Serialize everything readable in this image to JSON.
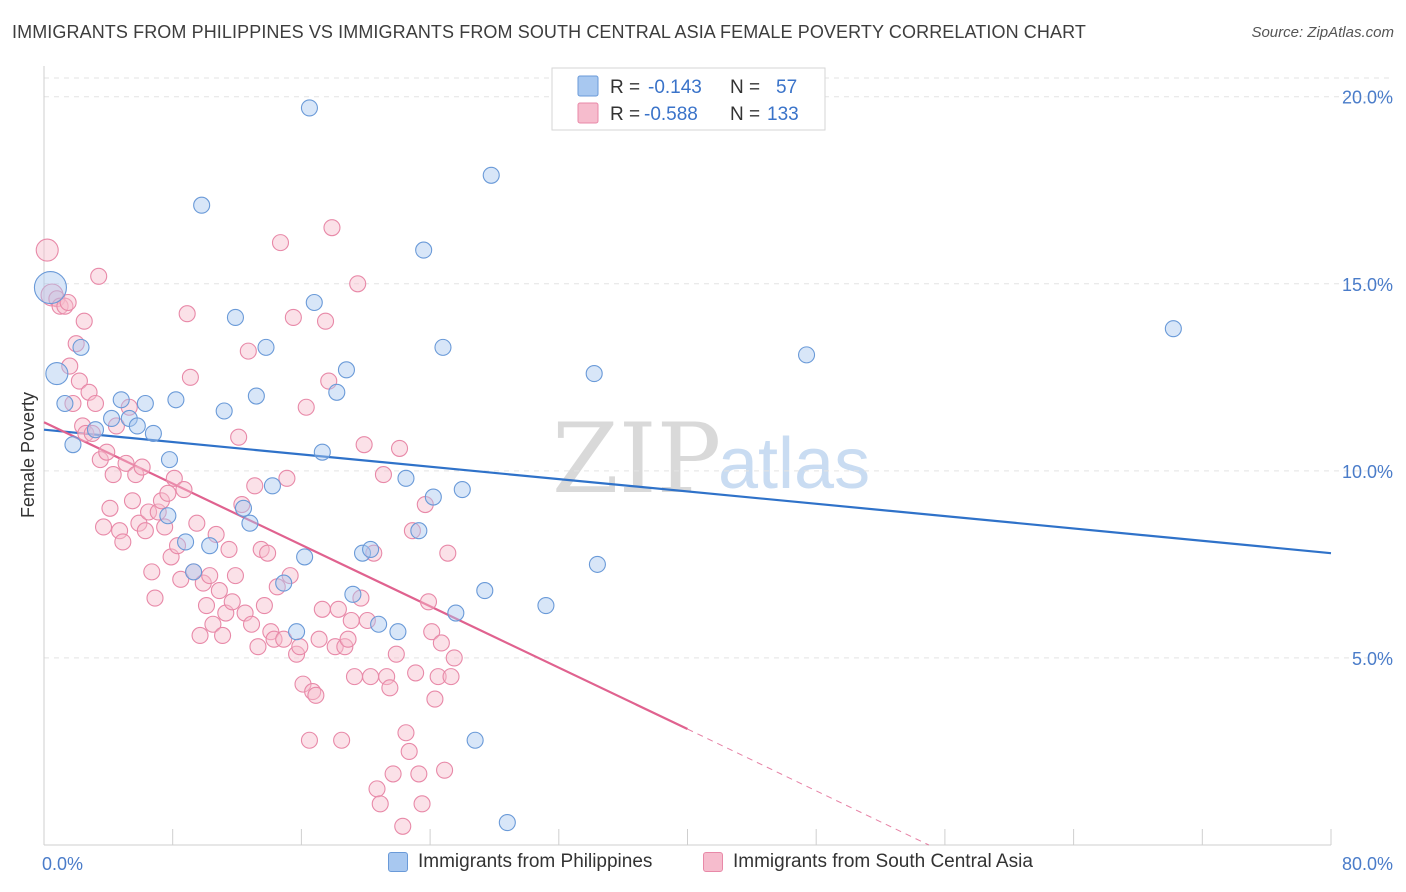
{
  "header": {
    "title": "IMMIGRANTS FROM PHILIPPINES VS IMMIGRANTS FROM SOUTH CENTRAL ASIA FEMALE POVERTY CORRELATION CHART",
    "source": "Source: ZipAtlas.com"
  },
  "watermark": {
    "zip": "ZIP",
    "atlas": "atlas"
  },
  "colors": {
    "philippines_fill": "#a8c8f0",
    "philippines_stroke": "#6a9ad8",
    "philippines_line": "#2f72c9",
    "sca_fill": "#f6bccd",
    "sca_stroke": "#e889a8",
    "sca_line": "#e0628f",
    "tick_text": "#4a7cc9",
    "grid": "#e3e3e3"
  },
  "legend_box": {
    "rows": [
      {
        "r_label": "R =",
        "r_value": "-0.143",
        "n_label": "N =",
        "n_value": "57"
      },
      {
        "r_label": "R =",
        "r_value": "-0.588",
        "n_label": "N =",
        "n_value": "133"
      }
    ]
  },
  "bottom_legend": {
    "items": [
      "Immigrants from Philippines",
      "Immigrants from South Central Asia"
    ]
  },
  "chart_data": {
    "type": "scatter",
    "title": "IMMIGRANTS FROM PHILIPPINES VS IMMIGRANTS FROM SOUTH CENTRAL ASIA FEMALE POVERTY CORRELATION CHART",
    "xlabel": "",
    "ylabel": "Female Poverty",
    "xlim": [
      0,
      80
    ],
    "ylim": [
      0,
      20.5
    ],
    "x_tick_labels": [
      "0.0%",
      "80.0%"
    ],
    "y_ticks": [
      5,
      10,
      15,
      20
    ],
    "y_tick_labels": [
      "5.0%",
      "10.0%",
      "15.0%",
      "20.0%"
    ],
    "grid": "horizontal dashed",
    "legend_position": "top-center",
    "series": [
      {
        "name": "Immigrants from Philippines",
        "R": -0.143,
        "N": 57,
        "trend": {
          "x": [
            0,
            80
          ],
          "y": [
            11.1,
            7.8
          ]
        },
        "points": [
          [
            0.4,
            14.9,
            16
          ],
          [
            0.8,
            12.6,
            11
          ],
          [
            1.3,
            11.8,
            8
          ],
          [
            1.8,
            10.7,
            8
          ],
          [
            2.3,
            13.3,
            8
          ],
          [
            3.2,
            11.1,
            8
          ],
          [
            4.2,
            11.4,
            8
          ],
          [
            4.8,
            11.9,
            8
          ],
          [
            5.3,
            11.4,
            8
          ],
          [
            5.8,
            11.2,
            8
          ],
          [
            6.3,
            11.8,
            8
          ],
          [
            6.8,
            11.0,
            8
          ],
          [
            7.7,
            8.8,
            8
          ],
          [
            7.8,
            10.3,
            8
          ],
          [
            8.2,
            11.9,
            8
          ],
          [
            8.8,
            8.1,
            8
          ],
          [
            9.3,
            7.3,
            8
          ],
          [
            9.8,
            17.1,
            8
          ],
          [
            10.3,
            8.0,
            8
          ],
          [
            11.2,
            11.6,
            8
          ],
          [
            11.9,
            14.1,
            8
          ],
          [
            12.4,
            9.0,
            8
          ],
          [
            12.8,
            8.6,
            8
          ],
          [
            13.2,
            12.0,
            8
          ],
          [
            13.8,
            13.3,
            8
          ],
          [
            14.2,
            9.6,
            8
          ],
          [
            14.9,
            7.0,
            8
          ],
          [
            15.7,
            5.7,
            8
          ],
          [
            16.2,
            7.7,
            8
          ],
          [
            16.5,
            19.7,
            8
          ],
          [
            16.8,
            14.5,
            8
          ],
          [
            17.3,
            10.5,
            8
          ],
          [
            18.2,
            12.1,
            8
          ],
          [
            18.8,
            12.7,
            8
          ],
          [
            19.2,
            6.7,
            8
          ],
          [
            19.8,
            7.8,
            8
          ],
          [
            20.3,
            7.9,
            8
          ],
          [
            20.8,
            5.9,
            8
          ],
          [
            22.0,
            5.7,
            8
          ],
          [
            22.5,
            9.8,
            8
          ],
          [
            23.3,
            8.4,
            8
          ],
          [
            23.6,
            15.9,
            8
          ],
          [
            24.2,
            9.3,
            8
          ],
          [
            24.8,
            13.3,
            8
          ],
          [
            25.6,
            6.2,
            8
          ],
          [
            26.0,
            9.5,
            8
          ],
          [
            26.8,
            2.8,
            8
          ],
          [
            27.4,
            6.8,
            8
          ],
          [
            27.8,
            17.9,
            8
          ],
          [
            28.8,
            0.6,
            8
          ],
          [
            31.2,
            6.4,
            8
          ],
          [
            34.2,
            12.6,
            8
          ],
          [
            34.4,
            7.5,
            8
          ],
          [
            47.4,
            13.1,
            8
          ],
          [
            70.2,
            13.8,
            8
          ]
        ]
      },
      {
        "name": "Immigrants from South Central Asia",
        "R": -0.588,
        "N": 133,
        "trend": {
          "x": [
            0,
            40
          ],
          "y": [
            11.3,
            3.1
          ]
        },
        "trend_extension": {
          "x": [
            40,
            55
          ],
          "y": [
            3.1,
            0.0
          ]
        },
        "points": [
          [
            0.2,
            15.9,
            11
          ],
          [
            0.5,
            14.7,
            11
          ],
          [
            0.8,
            14.6,
            8
          ],
          [
            1.0,
            14.4,
            8
          ],
          [
            1.3,
            14.4,
            8
          ],
          [
            1.5,
            14.5,
            8
          ],
          [
            1.6,
            12.8,
            8
          ],
          [
            1.8,
            11.8,
            8
          ],
          [
            2.0,
            13.4,
            8
          ],
          [
            2.2,
            12.4,
            8
          ],
          [
            2.4,
            11.2,
            8
          ],
          [
            2.5,
            14.0,
            8
          ],
          [
            2.6,
            11.0,
            8
          ],
          [
            2.8,
            12.1,
            8
          ],
          [
            3.0,
            11.0,
            8
          ],
          [
            3.2,
            11.8,
            8
          ],
          [
            3.4,
            15.2,
            8
          ],
          [
            3.5,
            10.3,
            8
          ],
          [
            3.7,
            8.5,
            8
          ],
          [
            3.9,
            10.5,
            8
          ],
          [
            4.1,
            9.0,
            8
          ],
          [
            4.3,
            9.9,
            8
          ],
          [
            4.5,
            11.2,
            8
          ],
          [
            4.7,
            8.4,
            8
          ],
          [
            4.9,
            8.1,
            8
          ],
          [
            5.1,
            10.2,
            8
          ],
          [
            5.3,
            11.7,
            8
          ],
          [
            5.5,
            9.2,
            8
          ],
          [
            5.7,
            9.9,
            8
          ],
          [
            5.9,
            8.6,
            8
          ],
          [
            6.1,
            10.1,
            8
          ],
          [
            6.3,
            8.4,
            8
          ],
          [
            6.5,
            8.9,
            8
          ],
          [
            6.7,
            7.3,
            8
          ],
          [
            6.9,
            6.6,
            8
          ],
          [
            7.1,
            8.9,
            8
          ],
          [
            7.3,
            9.2,
            8
          ],
          [
            7.5,
            8.5,
            8
          ],
          [
            7.7,
            9.4,
            8
          ],
          [
            7.9,
            7.7,
            8
          ],
          [
            8.1,
            9.8,
            8
          ],
          [
            8.3,
            8.0,
            8
          ],
          [
            8.5,
            7.1,
            8
          ],
          [
            8.7,
            9.5,
            8
          ],
          [
            8.9,
            14.2,
            8
          ],
          [
            9.1,
            12.5,
            8
          ],
          [
            9.3,
            7.3,
            8
          ],
          [
            9.5,
            8.6,
            8
          ],
          [
            9.7,
            5.6,
            8
          ],
          [
            9.9,
            7.0,
            8
          ],
          [
            10.1,
            6.4,
            8
          ],
          [
            10.3,
            7.2,
            8
          ],
          [
            10.5,
            5.9,
            8
          ],
          [
            10.7,
            8.3,
            8
          ],
          [
            10.9,
            6.8,
            8
          ],
          [
            11.1,
            5.6,
            8
          ],
          [
            11.3,
            6.2,
            8
          ],
          [
            11.5,
            7.9,
            8
          ],
          [
            11.7,
            6.5,
            8
          ],
          [
            11.9,
            7.2,
            8
          ],
          [
            12.1,
            10.9,
            8
          ],
          [
            12.3,
            9.1,
            8
          ],
          [
            12.5,
            6.2,
            8
          ],
          [
            12.7,
            13.2,
            8
          ],
          [
            12.9,
            5.9,
            8
          ],
          [
            13.1,
            9.6,
            8
          ],
          [
            13.3,
            5.3,
            8
          ],
          [
            13.5,
            7.9,
            8
          ],
          [
            13.7,
            6.4,
            8
          ],
          [
            13.9,
            7.8,
            8
          ],
          [
            14.1,
            5.7,
            8
          ],
          [
            14.3,
            5.5,
            8
          ],
          [
            14.5,
            6.9,
            8
          ],
          [
            14.7,
            16.1,
            8
          ],
          [
            14.9,
            5.5,
            8
          ],
          [
            15.1,
            9.8,
            8
          ],
          [
            15.3,
            7.2,
            8
          ],
          [
            15.5,
            14.1,
            8
          ],
          [
            15.7,
            5.1,
            8
          ],
          [
            15.9,
            5.3,
            8
          ],
          [
            16.1,
            4.3,
            8
          ],
          [
            16.3,
            11.7,
            8
          ],
          [
            16.5,
            2.8,
            8
          ],
          [
            16.7,
            4.1,
            8
          ],
          [
            16.9,
            4.0,
            8
          ],
          [
            17.1,
            5.5,
            8
          ],
          [
            17.3,
            6.3,
            8
          ],
          [
            17.5,
            14.0,
            8
          ],
          [
            17.7,
            12.4,
            8
          ],
          [
            17.9,
            16.5,
            8
          ],
          [
            18.1,
            5.3,
            8
          ],
          [
            18.3,
            6.3,
            8
          ],
          [
            18.5,
            2.8,
            8
          ],
          [
            18.7,
            5.3,
            8
          ],
          [
            18.9,
            5.5,
            8
          ],
          [
            19.1,
            6.0,
            8
          ],
          [
            19.3,
            4.5,
            8
          ],
          [
            19.5,
            15.0,
            8
          ],
          [
            19.7,
            6.6,
            8
          ],
          [
            19.9,
            10.7,
            8
          ],
          [
            20.1,
            6.0,
            8
          ],
          [
            20.3,
            4.5,
            8
          ],
          [
            20.5,
            7.8,
            8
          ],
          [
            20.7,
            1.5,
            8
          ],
          [
            20.9,
            1.1,
            8
          ],
          [
            21.1,
            9.9,
            8
          ],
          [
            21.3,
            4.5,
            8
          ],
          [
            21.5,
            4.2,
            8
          ],
          [
            21.7,
            1.9,
            8
          ],
          [
            21.9,
            5.1,
            8
          ],
          [
            22.1,
            10.6,
            8
          ],
          [
            22.3,
            0.5,
            8
          ],
          [
            22.5,
            3.0,
            8
          ],
          [
            22.7,
            2.5,
            8
          ],
          [
            22.9,
            8.4,
            8
          ],
          [
            23.1,
            4.6,
            8
          ],
          [
            23.3,
            1.9,
            8
          ],
          [
            23.5,
            1.1,
            8
          ],
          [
            23.7,
            9.1,
            8
          ],
          [
            23.9,
            6.5,
            8
          ],
          [
            24.1,
            5.7,
            8
          ],
          [
            24.3,
            3.9,
            8
          ],
          [
            24.5,
            4.5,
            8
          ],
          [
            24.7,
            5.4,
            8
          ],
          [
            24.9,
            2.0,
            8
          ],
          [
            25.1,
            7.8,
            8
          ],
          [
            25.3,
            4.5,
            8
          ],
          [
            25.5,
            5.0,
            8
          ]
        ]
      }
    ]
  }
}
